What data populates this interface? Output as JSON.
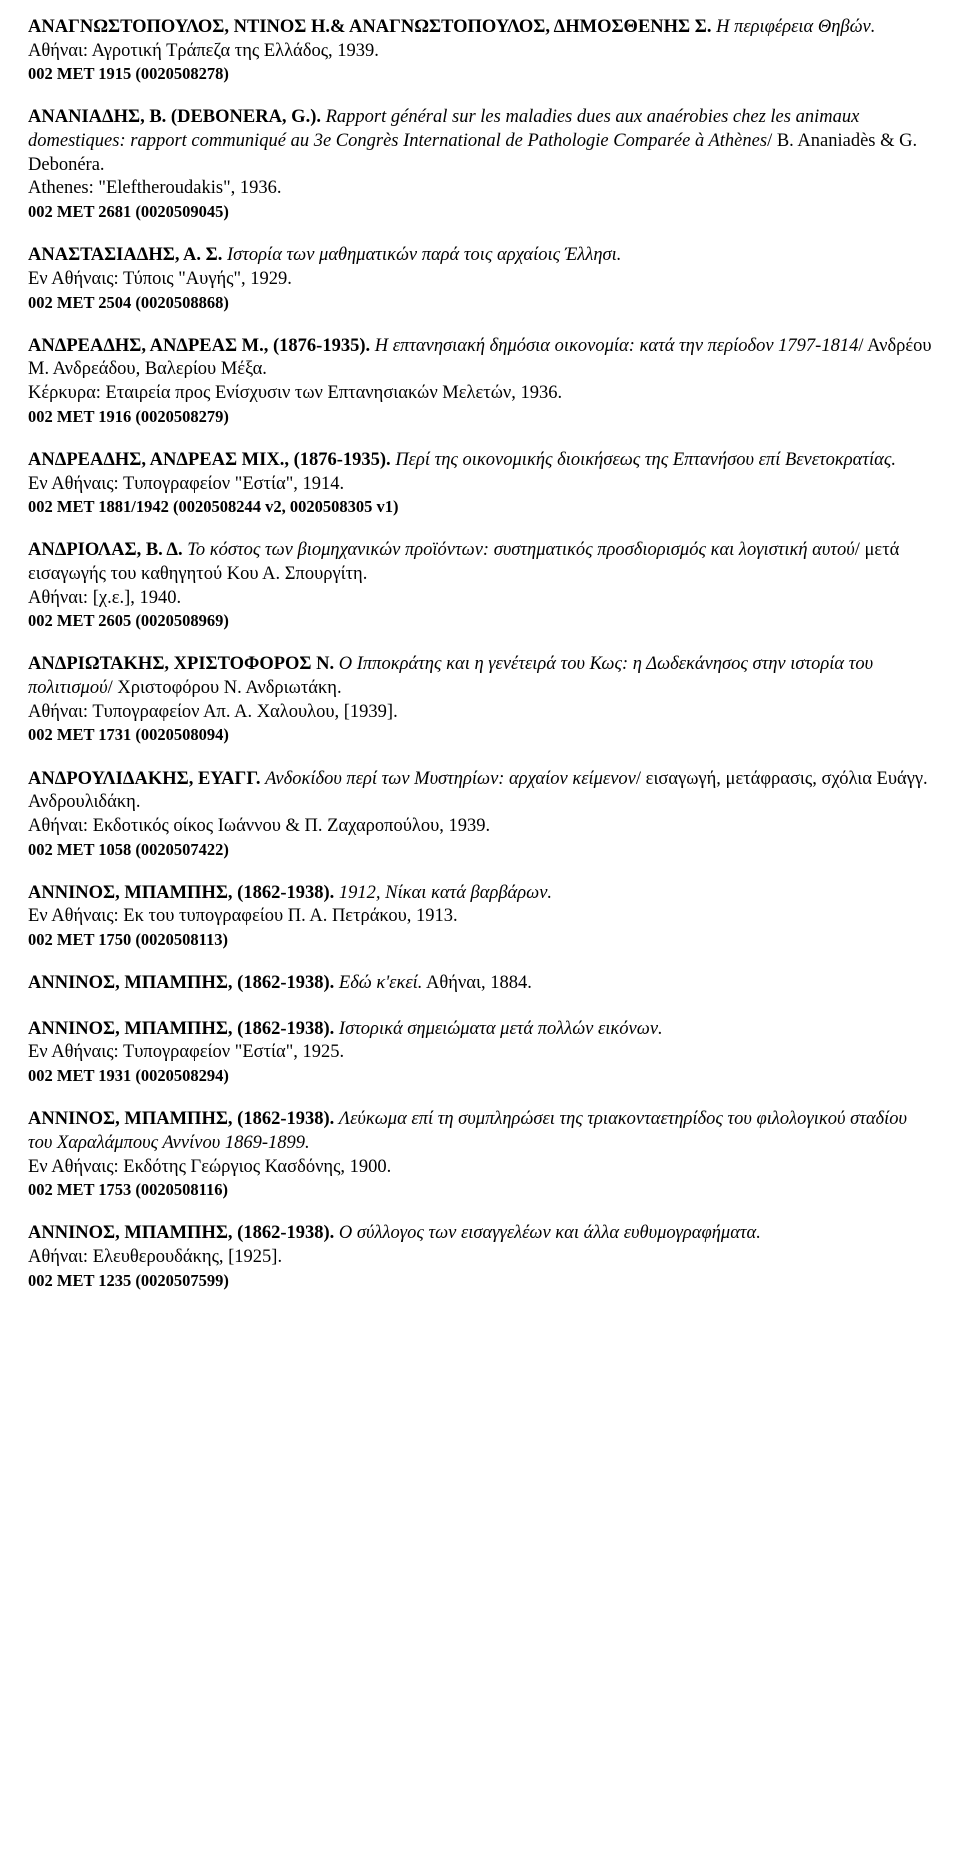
{
  "entries": [
    {
      "author": "ΑΝΑΓΝΩΣΤΟΠΟΥΛΟΣ, ΝΤΙΝΟΣ Η.& ΑΝΑΓΝΩΣΤΟΠΟΥΛΟΣ, ΔΗΜΟΣΘΕΝΗΣ Σ.",
      "title": "Η περιφέρεια Θηβών.",
      "rest": "",
      "pub": "Αθήναι: Αγροτική Τράπεζα της Ελλάδος, 1939.",
      "code": "002 ΜΕΤ 1915 (0020508278)"
    },
    {
      "author": "ΑΝΑΝΙΑΔΗΣ, Β. (DEBONERA, G.).",
      "title": "Rapport général sur les maladies dues aux anaérobies chez les animaux domestiques: rapport communiqué au 3e Congrès International de Pathologie Comparée à Athènes",
      "rest": "/ B. Ananiadès & G. Debonéra.",
      "pub": "Athenes: \"Eleftheroudakis\", 1936.",
      "code": "002 ΜΕΤ 2681 (0020509045)"
    },
    {
      "author": "ΑΝΑΣΤΑΣΙΑΔΗΣ, Α. Σ.",
      "title": "Ιστορία των μαθηματικών παρά τοις αρχαίοις Έλλησι.",
      "rest": "",
      "pub": "Εν Αθήναις: Τύποις \"Αυγής\", 1929.",
      "code": "002 ΜΕΤ 2504 (0020508868)"
    },
    {
      "author": "ΑΝΔΡΕΑΔΗΣ, ΑΝΔΡΕΑΣ Μ., (1876-1935).",
      "title": "Η επτανησιακή δημόσια οικονομία: κατά την περίοδον 1797-1814",
      "rest": "/ Ανδρέου Μ. Ανδρεάδου, Βαλερίου Μέξα.",
      "pub": "Κέρκυρα: Εταιρεία προς Ενίσχυσιν των Επτανησιακών Μελετών, 1936.",
      "code": "002 ΜΕΤ 1916 (0020508279)"
    },
    {
      "author": "ΑΝΔΡΕΑΔΗΣ, ΑΝΔΡΕΑΣ ΜΙΧ., (1876-1935).",
      "title": "Περί της οικονομικής διοικήσεως της Επτανήσου επί Βενετοκρατίας.",
      "rest": "",
      "pub": "Εν Αθήναις: Τυπογραφείον \"Εστία\", 1914.",
      "code": "002 ΜΕΤ 1881/1942 (0020508244 v2, 0020508305 v1)"
    },
    {
      "author": "ΑΝΔΡΙΟΛΑΣ, Β. Δ.",
      "title": "Το κόστος των βιομηχανικών προϊόντων: συστηματικός προσδιορισμός και λογιστική αυτού",
      "rest": "/ μετά εισαγωγής του καθηγητού Κου Α. Σπουργίτη.",
      "pub": "Αθήναι: [χ.ε.], 1940.",
      "code": "002 ΜΕΤ 2605 (0020508969)"
    },
    {
      "author": "ΑΝΔΡΙΩΤΑΚΗΣ, ΧΡΙΣΤΟΦΟΡΟΣ Ν.",
      "title": "Ο Ιπποκράτης και η γενέτειρά του Κως: η Δωδεκάνησος στην ιστορία του πολιτισμού",
      "rest": "/ Χριστοφόρου Ν. Ανδριωτάκη.",
      "pub": "Αθήναι: Τυπογραφείον Απ. Α. Χαλουλου, [1939].",
      "code": "002 ΜΕΤ 1731 (0020508094)"
    },
    {
      "author": "ΑΝΔΡΟΥΛΙΔΑΚΗΣ, ΕΥΑΓΓ.",
      "title": "Ανδοκίδου περί των Μυστηρίων: αρχαίον κείμενον",
      "rest": "/ εισαγωγή, μετάφρασις, σχόλια Ευάγγ. Ανδρουλιδάκη.",
      "pub": "Αθήναι: Εκδοτικός οίκος Ιωάννου & Π. Ζαχαροπούλου, 1939.",
      "code": "002 ΜΕΤ 1058 (0020507422)"
    },
    {
      "author": "ΑΝΝΙΝΟΣ, ΜΠΑΜΠΗΣ, (1862-1938).",
      "title": "1912, Νίκαι κατά βαρβάρων.",
      "rest": "",
      "pub": "Εν Αθήναις: Εκ του τυπογραφείου Π. Α. Πετράκου, 1913.",
      "code": "002 ΜΕΤ 1750 (0020508113)"
    },
    {
      "author": "ΑΝΝΙΝΟΣ, ΜΠΑΜΠΗΣ, (1862-1938).",
      "title": "Εδώ κ'εκεί.",
      "rest": " Αθήναι, 1884.",
      "pub": "",
      "code": ""
    },
    {
      "author": "ΑΝΝΙΝΟΣ, ΜΠΑΜΠΗΣ, (1862-1938).",
      "title": "Ιστορικά σημειώματα μετά πολλών εικόνων.",
      "rest": "",
      "pub": "Εν Αθήναις: Τυπογραφείον \"Εστία\", 1925.",
      "code": "002 ΜΕΤ 1931 (0020508294)"
    },
    {
      "author": "ΑΝΝΙΝΟΣ, ΜΠΑΜΠΗΣ, (1862-1938).",
      "title": "Λεύκωμα επί τη συμπληρώσει της τριακονταετηρίδος του φιλολογικού σταδίου του Χαραλάμπους Αννίνου 1869-1899.",
      "rest": "",
      "pub": "Εν Αθήναις: Εκδότης Γεώργιος Κασδόνης, 1900.",
      "code": "002 ΜΕΤ 1753 (0020508116)"
    },
    {
      "author": "ΑΝΝΙΝΟΣ, ΜΠΑΜΠΗΣ, (1862-1938).",
      "title": "Ο σύλλογος των εισαγγελέων και άλλα ευθυμογραφήματα.",
      "rest": "",
      "pub": "Αθήναι: Ελευθερουδάκης, [1925].",
      "code": "002 ΜΕΤ 1235 (0020507599)"
    }
  ]
}
